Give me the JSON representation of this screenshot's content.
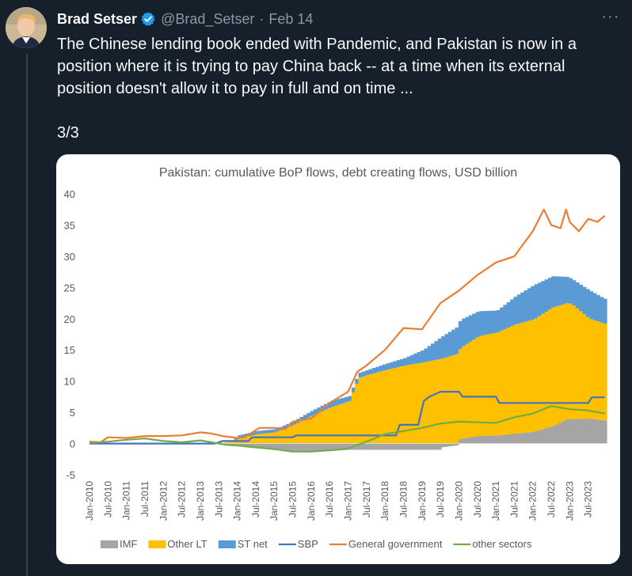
{
  "tweet": {
    "author_name": "Brad Setser",
    "handle": "@Brad_Setser",
    "separator": "·",
    "date": "Feb 14",
    "more_label": "···",
    "lines": [
      "The Chinese lending book ended with Pandemic, and Pakistan is now in a",
      "position where it is trying to pay China back  -- at a time when its external",
      "position doesn't allow it to pay in full and on time ..."
    ],
    "thread_counter": "3/3",
    "icons": {
      "verified": "verified-badge-icon",
      "more": "more-options-icon"
    },
    "colors": {
      "background": "#15202b",
      "verified": "#1d9bf0",
      "secondary_text": "#8b98a5"
    }
  },
  "chart_data": {
    "type": "area",
    "title": "Pakistan: cumulative BoP flows, debt creating flows, USD billion",
    "ylim": [
      -5,
      40
    ],
    "yticks": [
      -5,
      0,
      5,
      10,
      15,
      20,
      25,
      30,
      35,
      40
    ],
    "xticks": [
      "Jan-2010",
      "Jul-2010",
      "Jan-2011",
      "Jul-2011",
      "Jan-2012",
      "Jul-2012",
      "Jan-2013",
      "Jul-2013",
      "Jan-2014",
      "Jul-2014",
      "Jan-2015",
      "Jul-2015",
      "Jan-2016",
      "Jul-2016",
      "Jan-2017",
      "Jul-2017",
      "Jan-2018",
      "Jul-2018",
      "Jan-2019",
      "Jul-2019",
      "Jan-2020",
      "Jul-2020",
      "Jan-2021",
      "Jul-2021",
      "Jan-2022",
      "Jul-2022",
      "Jan-2023",
      "Jul-2023"
    ],
    "x_start": 2010.0,
    "x_end": 2024.0,
    "grid": false,
    "legend_position": "bottom",
    "stacked_areas": [
      {
        "name": "IMF",
        "color": "#a5a5a5",
        "points": [
          [
            2010,
            0
          ],
          [
            2013.4,
            0
          ],
          [
            2013.6,
            -0.3
          ],
          [
            2014.0,
            -0.5
          ],
          [
            2014.5,
            -0.8
          ],
          [
            2015.0,
            -1.0
          ],
          [
            2015.5,
            -1.2
          ],
          [
            2016.0,
            -1.3
          ],
          [
            2016.5,
            -1.2
          ],
          [
            2017.0,
            -1.0
          ],
          [
            2017.5,
            -1.0
          ],
          [
            2018.0,
            -1.0
          ],
          [
            2018.5,
            -1.0
          ],
          [
            2019.0,
            -1.0
          ],
          [
            2019.45,
            -1.0
          ],
          [
            2019.5,
            -0.6
          ],
          [
            2019.9,
            -0.3
          ],
          [
            2020.0,
            0.8
          ],
          [
            2020.5,
            1.2
          ],
          [
            2021.0,
            1.3
          ],
          [
            2021.5,
            1.6
          ],
          [
            2022.0,
            1.9
          ],
          [
            2022.5,
            2.8
          ],
          [
            2022.9,
            3.9
          ],
          [
            2023.5,
            4.0
          ],
          [
            2023.9,
            3.7
          ]
        ]
      },
      {
        "name": "Other LT",
        "color": "#ffc000",
        "points": [
          [
            2010,
            0
          ],
          [
            2013.4,
            0
          ],
          [
            2013.8,
            0.3
          ],
          [
            2014.0,
            0.8
          ],
          [
            2014.5,
            1.5
          ],
          [
            2015.0,
            1.8
          ],
          [
            2015.5,
            3.0
          ],
          [
            2016.0,
            4.5
          ],
          [
            2016.5,
            5.8
          ],
          [
            2017.0,
            6.8
          ],
          [
            2017.25,
            10.5
          ],
          [
            2017.5,
            11.0
          ],
          [
            2018.0,
            11.8
          ],
          [
            2018.5,
            12.5
          ],
          [
            2019.0,
            13.0
          ],
          [
            2019.5,
            13.6
          ],
          [
            2020.0,
            14.5
          ],
          [
            2020.5,
            16.0
          ],
          [
            2021.0,
            16.5
          ],
          [
            2021.5,
            17.5
          ],
          [
            2022.0,
            18.0
          ],
          [
            2022.5,
            19.0
          ],
          [
            2023.0,
            18.5
          ],
          [
            2023.5,
            16.0
          ],
          [
            2023.9,
            15.5
          ]
        ]
      },
      {
        "name": "ST net",
        "color": "#5b9bd5",
        "points": [
          [
            2010,
            0
          ],
          [
            2013.8,
            0
          ],
          [
            2014.0,
            0.5
          ],
          [
            2014.5,
            0.5
          ],
          [
            2015.0,
            0.5
          ],
          [
            2015.5,
            0.6
          ],
          [
            2016.0,
            0.8
          ],
          [
            2016.5,
            1.0
          ],
          [
            2017.0,
            0.8
          ],
          [
            2017.5,
            0.8
          ],
          [
            2018.0,
            1.0
          ],
          [
            2018.5,
            1.2
          ],
          [
            2019.0,
            2.0
          ],
          [
            2019.5,
            3.5
          ],
          [
            2020.0,
            4.5
          ],
          [
            2020.5,
            4.0
          ],
          [
            2021.0,
            3.5
          ],
          [
            2021.5,
            4.5
          ],
          [
            2022.0,
            5.5
          ],
          [
            2022.5,
            5.0
          ],
          [
            2023.0,
            4.0
          ],
          [
            2023.5,
            4.5
          ],
          [
            2023.9,
            4.0
          ]
        ]
      }
    ],
    "series": [
      {
        "name": "SBP",
        "color": "#4472c4",
        "points": [
          [
            2010,
            0
          ],
          [
            2013.4,
            0
          ],
          [
            2013.6,
            0.4
          ],
          [
            2014.3,
            0.4
          ],
          [
            2014.4,
            1.0
          ],
          [
            2015.5,
            1.0
          ],
          [
            2015.6,
            1.3
          ],
          [
            2018.3,
            1.3
          ],
          [
            2018.4,
            3.0
          ],
          [
            2018.9,
            3.0
          ],
          [
            2019.05,
            6.8
          ],
          [
            2019.2,
            7.5
          ],
          [
            2019.5,
            8.3
          ],
          [
            2020.0,
            8.3
          ],
          [
            2020.1,
            7.5
          ],
          [
            2021.0,
            7.5
          ],
          [
            2021.1,
            6.5
          ],
          [
            2023.5,
            6.5
          ],
          [
            2023.6,
            7.4
          ],
          [
            2023.95,
            7.4
          ]
        ]
      },
      {
        "name": "General government",
        "color": "#ed7d31",
        "points": [
          [
            2010,
            0.3
          ],
          [
            2010.3,
            0.2
          ],
          [
            2010.5,
            1.0
          ],
          [
            2011.0,
            0.9
          ],
          [
            2011.5,
            1.2
          ],
          [
            2012.0,
            1.2
          ],
          [
            2012.5,
            1.3
          ],
          [
            2013.0,
            1.8
          ],
          [
            2013.3,
            1.6
          ],
          [
            2013.6,
            1.2
          ],
          [
            2014.0,
            0.9
          ],
          [
            2014.2,
            1.0
          ],
          [
            2014.6,
            2.5
          ],
          [
            2015.0,
            2.5
          ],
          [
            2015.3,
            2.3
          ],
          [
            2015.5,
            3.5
          ],
          [
            2016.0,
            4.0
          ],
          [
            2016.5,
            6.5
          ],
          [
            2017.0,
            8.3
          ],
          [
            2017.25,
            11.5
          ],
          [
            2017.5,
            12.5
          ],
          [
            2018.0,
            15.0
          ],
          [
            2018.5,
            18.5
          ],
          [
            2019.0,
            18.3
          ],
          [
            2019.5,
            22.5
          ],
          [
            2020.0,
            24.5
          ],
          [
            2020.5,
            27.0
          ],
          [
            2021.0,
            29.0
          ],
          [
            2021.5,
            30.0
          ],
          [
            2022.0,
            34.0
          ],
          [
            2022.3,
            37.5
          ],
          [
            2022.5,
            35.0
          ],
          [
            2022.75,
            34.5
          ],
          [
            2022.9,
            37.5
          ],
          [
            2023.0,
            35.5
          ],
          [
            2023.25,
            34.0
          ],
          [
            2023.5,
            36.0
          ],
          [
            2023.75,
            35.5
          ],
          [
            2023.95,
            36.5
          ]
        ]
      },
      {
        "name": "other sectors",
        "color": "#70ad47",
        "points": [
          [
            2010,
            0.1
          ],
          [
            2010.5,
            0.3
          ],
          [
            2011.0,
            0.6
          ],
          [
            2011.5,
            0.8
          ],
          [
            2012.0,
            0.4
          ],
          [
            2012.5,
            0.2
          ],
          [
            2013.0,
            0.5
          ],
          [
            2013.3,
            0.2
          ],
          [
            2013.7,
            -0.2
          ],
          [
            2014.0,
            -0.3
          ],
          [
            2014.5,
            -0.6
          ],
          [
            2015.0,
            -0.9
          ],
          [
            2015.5,
            -1.3
          ],
          [
            2016.0,
            -1.3
          ],
          [
            2016.5,
            -1.1
          ],
          [
            2017.0,
            -0.8
          ],
          [
            2017.5,
            0.3
          ],
          [
            2018.0,
            1.5
          ],
          [
            2018.5,
            2.0
          ],
          [
            2019.0,
            2.5
          ],
          [
            2019.5,
            3.2
          ],
          [
            2020.0,
            3.5
          ],
          [
            2020.5,
            3.4
          ],
          [
            2021.0,
            3.3
          ],
          [
            2021.5,
            4.2
          ],
          [
            2022.0,
            4.8
          ],
          [
            2022.5,
            6.0
          ],
          [
            2023.0,
            5.5
          ],
          [
            2023.5,
            5.3
          ],
          [
            2023.95,
            4.8
          ]
        ]
      }
    ],
    "legend": [
      {
        "name": "IMF",
        "color": "#a5a5a5",
        "kind": "box"
      },
      {
        "name": "Other LT",
        "color": "#ffc000",
        "kind": "box"
      },
      {
        "name": "ST net",
        "color": "#5b9bd5",
        "kind": "box"
      },
      {
        "name": "SBP",
        "color": "#4472c4",
        "kind": "line"
      },
      {
        "name": "General government",
        "color": "#ed7d31",
        "kind": "line"
      },
      {
        "name": "other sectors",
        "color": "#70ad47",
        "kind": "line"
      }
    ]
  }
}
